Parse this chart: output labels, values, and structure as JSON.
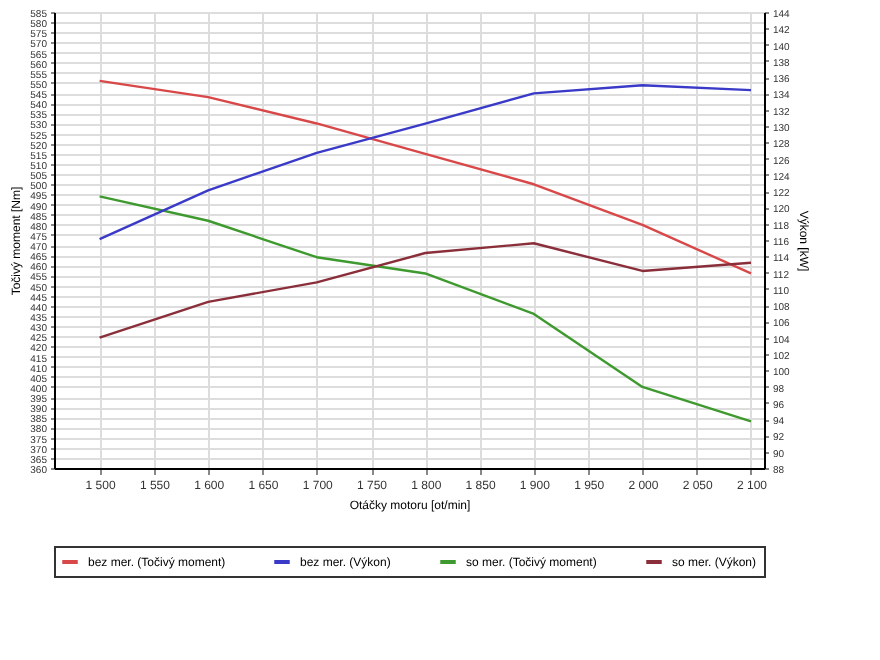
{
  "chart_data": {
    "type": "line",
    "xlabel": "Otáčky motoru [ot/min]",
    "ylabel": "Točivý moment [Nm]",
    "y2label": "Výkon [kW]",
    "x": [
      1500,
      1600,
      1700,
      1800,
      1900,
      2000,
      2100
    ],
    "xlim": [
      1458,
      2112
    ],
    "xticks": [
      {
        "value": 1500,
        "label": "1 500"
      },
      {
        "value": 1550,
        "label": "1 550"
      },
      {
        "value": 1600,
        "label": "1 600"
      },
      {
        "value": 1650,
        "label": "1 650"
      },
      {
        "value": 1700,
        "label": "1 700"
      },
      {
        "value": 1750,
        "label": "1 750"
      },
      {
        "value": 1800,
        "label": "1 800"
      },
      {
        "value": 1850,
        "label": "1 850"
      },
      {
        "value": 1900,
        "label": "1 900"
      },
      {
        "value": 1950,
        "label": "1 950"
      },
      {
        "value": 2000,
        "label": "2 000"
      },
      {
        "value": 2050,
        "label": "2 050"
      },
      {
        "value": 2100,
        "label": "2 100"
      }
    ],
    "ylim": [
      360,
      585
    ],
    "yticks": [
      360,
      365,
      370,
      375,
      380,
      385,
      390,
      395,
      400,
      405,
      410,
      415,
      420,
      425,
      430,
      435,
      440,
      445,
      450,
      455,
      460,
      465,
      470,
      475,
      480,
      485,
      490,
      495,
      500,
      505,
      510,
      515,
      520,
      525,
      530,
      535,
      540,
      545,
      550,
      555,
      560,
      565,
      570,
      575,
      580,
      585
    ],
    "y2lim": [
      88,
      144
    ],
    "y2ticks": [
      88,
      90,
      92,
      94,
      96,
      98,
      100,
      102,
      104,
      106,
      108,
      110,
      112,
      114,
      116,
      118,
      120,
      122,
      124,
      126,
      128,
      130,
      132,
      134,
      136,
      138,
      140,
      142,
      144
    ],
    "series": [
      {
        "name": "bez mer. (Točivý moment)",
        "color": "#d94848",
        "values": [
          551,
          543,
          530,
          515,
          500,
          480,
          456
        ]
      },
      {
        "name": "bez mer. (Výkon)",
        "color": "#3a3ac8",
        "axis": "y2",
        "values": [
          116.1,
          122.1,
          126.7,
          130.3,
          134,
          135,
          134.4
        ]
      },
      {
        "name": "so mer. (Točivý moment)",
        "color": "#3e9a2e",
        "values": [
          494,
          482,
          464,
          456,
          436,
          400,
          383
        ]
      },
      {
        "name": "so mer. (Výkon)",
        "color": "#8a2e3a",
        "axis": "y2",
        "values": [
          104,
          108.4,
          110.8,
          114.4,
          115.6,
          112.2,
          113.2
        ]
      }
    ],
    "grid": true,
    "legend": "bottom",
    "marker": "none",
    "line_style": "solid"
  }
}
